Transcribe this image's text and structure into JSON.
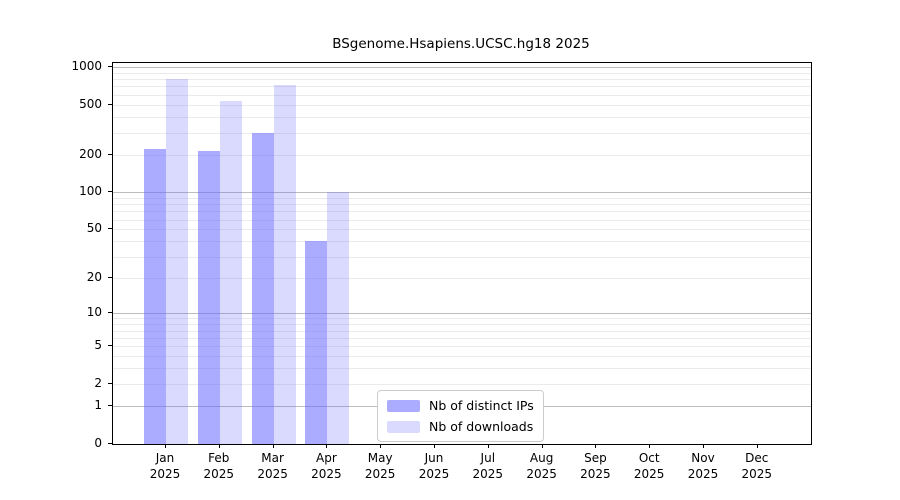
{
  "chart_data": {
    "type": "bar",
    "title": "BSgenome.Hsapiens.UCSC.hg18 2025",
    "categories": [
      "Jan",
      "Feb",
      "Mar",
      "Apr",
      "May",
      "Jun",
      "Jul",
      "Aug",
      "Sep",
      "Oct",
      "Nov",
      "Dec"
    ],
    "tick_year": "2025",
    "series": [
      {
        "name": "Nb of distinct IPs",
        "color": "rgba(102,102,255,0.55)",
        "values": [
          220,
          215,
          300,
          40,
          0,
          0,
          0,
          0,
          0,
          0,
          0,
          0
        ]
      },
      {
        "name": "Nb of downloads",
        "color": "rgba(102,102,255,0.24)",
        "values": [
          800,
          540,
          715,
          101,
          0,
          0,
          0,
          0,
          0,
          0,
          0,
          0
        ]
      }
    ],
    "y_ticks": [
      1000,
      500,
      200,
      100,
      50,
      20,
      10,
      5,
      2,
      1,
      0
    ],
    "y_scale": "log10(value+1)",
    "ylim": [
      0,
      1000
    ],
    "xlabel": "",
    "ylabel": "",
    "grid": true,
    "minor_grid_color": "#ebebeb",
    "major_grid_color": "#bdbdbd",
    "axis_color": "#000000",
    "legend_position": "bottom-center"
  }
}
